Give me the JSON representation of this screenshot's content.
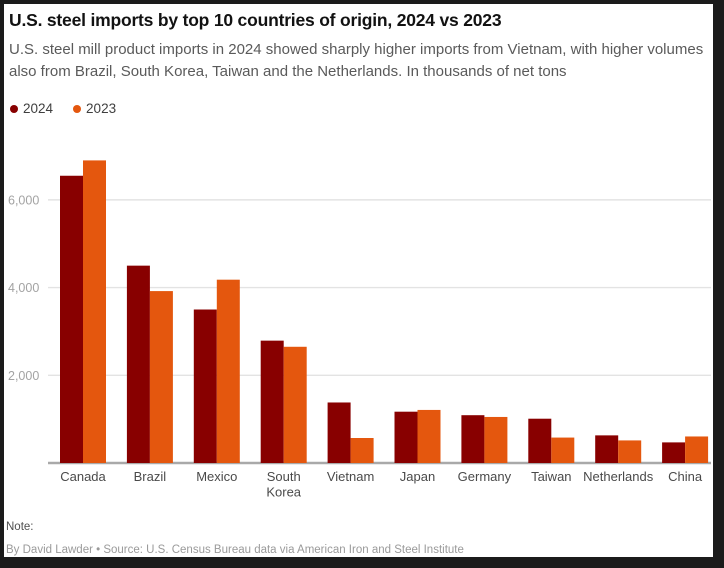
{
  "window": {
    "background": "#1b1b1b",
    "card_background": "#ffffff"
  },
  "header": {
    "title": "U.S. steel imports by top 10 countries of origin, 2024 vs 2023",
    "subtitle": "U.S. steel mill product imports in 2024 showed sharply higher imports from Vietnam, with higher volumes also from Brazil, South Korea, Taiwan and the Netherlands. In thousands of net tons"
  },
  "chart_data": {
    "type": "bar",
    "title": "U.S. steel imports by top 10 countries of origin, 2024 vs 2023",
    "unit": "thousands of net tons",
    "categories": [
      "Canada",
      "Brazil",
      "Mexico",
      "South Korea",
      "Vietnam",
      "Japan",
      "Germany",
      "Taiwan",
      "Netherlands",
      "China"
    ],
    "series": [
      {
        "name": "2024",
        "color": "#880000",
        "values": [
          6550,
          4500,
          3500,
          2790,
          1380,
          1170,
          1090,
          1010,
          630,
          470
        ]
      },
      {
        "name": "2023",
        "color": "#E4570E",
        "values": [
          6900,
          3920,
          4180,
          2650,
          570,
          1210,
          1050,
          580,
          515,
          605
        ]
      }
    ],
    "yticks": [
      2000,
      4000,
      6000
    ],
    "ylim": [
      0,
      7730
    ],
    "grid": true,
    "legend_position": "top-left",
    "xlabel": "",
    "ylabel": ""
  },
  "footer": {
    "note_label": "Note:",
    "byline": "By David Lawder • Source: U.S. Census Bureau data via American Iron and Steel Institute"
  },
  "colors": {
    "gridline": "#e3e3e3",
    "axis_line": "#a9a9a9",
    "tick_label": "#a3a3a3",
    "category_label": "#4a4a4a"
  }
}
